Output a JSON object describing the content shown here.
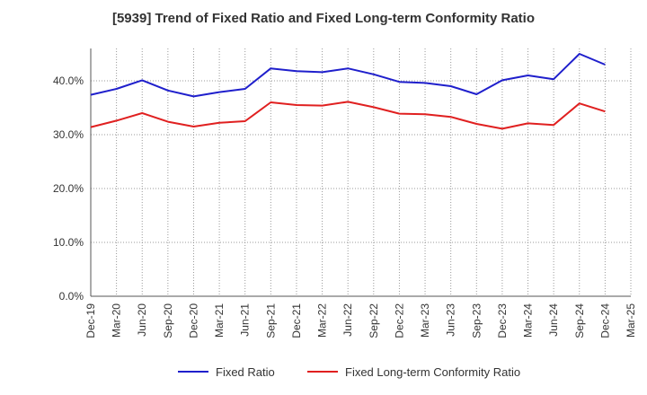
{
  "chart_data": {
    "type": "line",
    "title": "[5939]  Trend of Fixed Ratio and Fixed Long-term Conformity Ratio",
    "categories": [
      "Dec-19",
      "Mar-20",
      "Jun-20",
      "Sep-20",
      "Dec-20",
      "Mar-21",
      "Jun-21",
      "Sep-21",
      "Dec-21",
      "Mar-22",
      "Jun-22",
      "Sep-22",
      "Dec-22",
      "Mar-23",
      "Jun-23",
      "Sep-23",
      "Dec-23",
      "Mar-24",
      "Jun-24",
      "Sep-24",
      "Dec-24",
      "Mar-25"
    ],
    "y_ticks": [
      "0.0%",
      "10.0%",
      "20.0%",
      "30.0%",
      "40.0%"
    ],
    "ylim": [
      0,
      46
    ],
    "grid": true,
    "legend_position": "bottom",
    "series": [
      {
        "name": "Fixed Ratio",
        "color": "#1f1fcc",
        "values": [
          37.4,
          38.5,
          40.1,
          38.2,
          37.1,
          37.9,
          38.5,
          42.3,
          41.8,
          41.6,
          42.3,
          41.2,
          39.8,
          39.6,
          39.0,
          37.5,
          40.1,
          41.0,
          40.3,
          45.0,
          43.0,
          null
        ]
      },
      {
        "name": "Fixed Long-term Conformity Ratio",
        "color": "#e02020",
        "values": [
          31.4,
          32.6,
          34.0,
          32.4,
          31.5,
          32.2,
          32.5,
          36.0,
          35.5,
          35.4,
          36.1,
          35.1,
          33.9,
          33.8,
          33.3,
          32.0,
          31.1,
          32.1,
          31.8,
          35.8,
          34.3,
          null
        ]
      }
    ]
  }
}
